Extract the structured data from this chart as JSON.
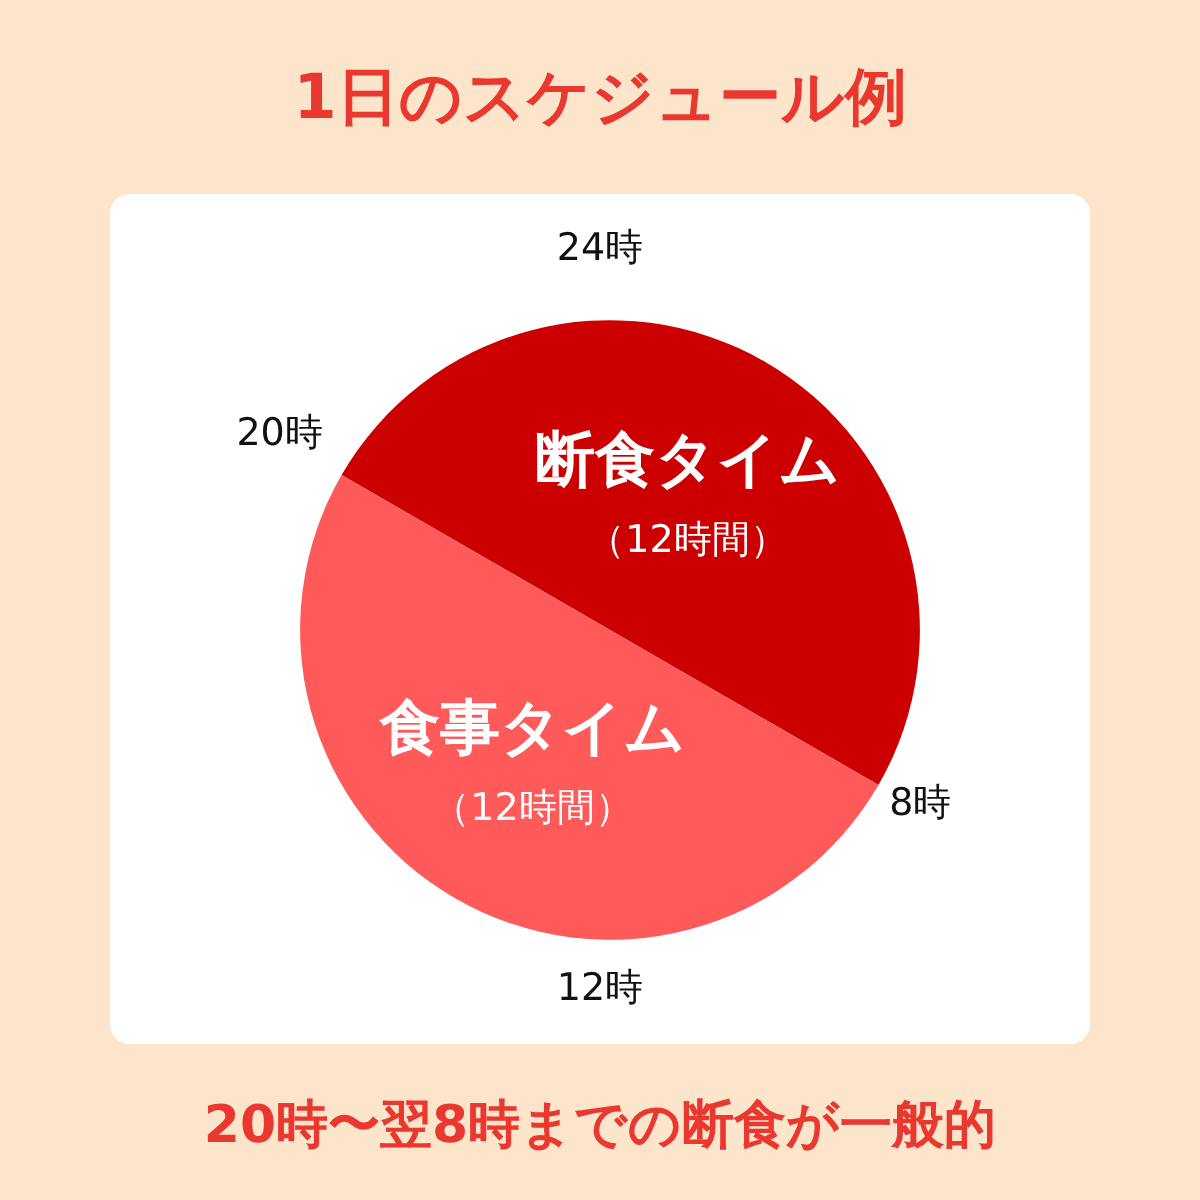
{
  "chart_data": {
    "type": "pie",
    "title": "1日のスケジュール例",
    "subtitle": "20時〜翌8時までの断食が一般的",
    "categories": [
      "断食タイム",
      "食事タイム"
    ],
    "values": [
      12,
      12
    ],
    "colors": [
      "#cc0000",
      "#ff5a5a"
    ],
    "value_labels": [
      "（12時間）",
      "（12時間）"
    ],
    "annotations": [
      "24時",
      "8時",
      "12時",
      "20時"
    ],
    "legend": false
  }
}
